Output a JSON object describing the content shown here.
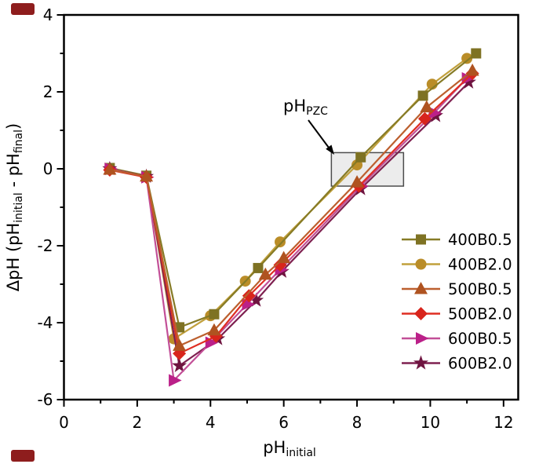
{
  "figure": {
    "background": "#ffffff",
    "corner_mark_color": "#8e1d1d"
  },
  "chart_data": {
    "type": "line",
    "title": "",
    "xlabel": {
      "base": "pH",
      "sub": "initial"
    },
    "ylabel": {
      "part1": "ΔpH (pH",
      "sub1": "initial",
      "part2": " - pH",
      "sub2": "final",
      "part3": ")"
    },
    "xlim": [
      0,
      12.4
    ],
    "ylim": [
      -6,
      4
    ],
    "x_major_ticks": [
      0,
      2,
      4,
      6,
      8,
      10,
      12
    ],
    "x_minor_ticks": [
      1,
      3,
      5,
      7,
      9,
      11
    ],
    "y_major_ticks": [
      4,
      2,
      0,
      -2,
      -4,
      -6
    ],
    "y_minor_ticks": [
      3,
      1,
      -1,
      -3,
      -5
    ],
    "grid": false,
    "legend_position": "lower right",
    "annotation": {
      "base": "pH",
      "sub": "PZC",
      "arrow_color": "#000000"
    },
    "pzc_box": {
      "x_from": 7.3,
      "x_to": 9.27,
      "y_from": -0.45,
      "y_to": 0.42,
      "fill": "#ececec",
      "border": "#4d4d4d"
    },
    "series": [
      {
        "name": "400B0.5",
        "marker": "square",
        "marker_color": "#7E7223",
        "line_color": "#867B26",
        "points": [
          [
            1.25,
            0.02
          ],
          [
            2.25,
            -0.18
          ],
          [
            3.15,
            -4.12
          ],
          [
            4.1,
            -3.78
          ],
          [
            5.3,
            -2.58
          ],
          [
            8.1,
            0.3
          ],
          [
            9.8,
            1.9
          ],
          [
            11.25,
            3.0
          ]
        ]
      },
      {
        "name": "400B2.0",
        "marker": "circle",
        "marker_color": "#BA8D28",
        "line_color": "#C1A03C",
        "points": [
          [
            1.25,
            0.0
          ],
          [
            2.25,
            -0.2
          ],
          [
            3.0,
            -4.42
          ],
          [
            4.0,
            -3.82
          ],
          [
            4.95,
            -2.92
          ],
          [
            5.9,
            -1.9
          ],
          [
            8.0,
            0.1
          ],
          [
            10.05,
            2.2
          ],
          [
            11.0,
            2.87
          ]
        ]
      },
      {
        "name": "500B0.5",
        "marker": "triangle-up",
        "marker_color": "#AF5320",
        "line_color": "#BC5F2E",
        "points": [
          [
            1.25,
            -0.02
          ],
          [
            2.25,
            -0.2
          ],
          [
            3.15,
            -4.6
          ],
          [
            4.1,
            -4.2
          ],
          [
            5.5,
            -2.75
          ],
          [
            6.0,
            -2.32
          ],
          [
            8.0,
            -0.35
          ],
          [
            9.9,
            1.6
          ],
          [
            11.15,
            2.55
          ]
        ]
      },
      {
        "name": "500B2.0",
        "marker": "diamond",
        "marker_color": "#D8251C",
        "line_color": "#DF2E22",
        "points": [
          [
            1.25,
            -0.03
          ],
          [
            2.25,
            -0.22
          ],
          [
            3.15,
            -4.8
          ],
          [
            4.15,
            -4.35
          ],
          [
            5.05,
            -3.3
          ],
          [
            5.9,
            -2.5
          ],
          [
            8.05,
            -0.45
          ],
          [
            9.85,
            1.3
          ],
          [
            11.15,
            2.48
          ]
        ]
      },
      {
        "name": "600B0.5",
        "marker": "triangle-right",
        "marker_color": "#BB2089",
        "line_color": "#C24F97",
        "points": [
          [
            1.25,
            0.0
          ],
          [
            2.25,
            -0.22
          ],
          [
            3.0,
            -5.5
          ],
          [
            4.0,
            -4.52
          ],
          [
            5.0,
            -3.52
          ],
          [
            5.9,
            -2.62
          ],
          [
            8.1,
            -0.45
          ],
          [
            10.1,
            1.45
          ],
          [
            11.0,
            2.35
          ]
        ]
      },
      {
        "name": "600B2.0",
        "marker": "star",
        "marker_color": "#6F1440",
        "line_color": "#7E2050",
        "points": [
          [
            1.25,
            0.0
          ],
          [
            2.25,
            -0.2
          ],
          [
            3.15,
            -5.12
          ],
          [
            4.2,
            -4.42
          ],
          [
            5.25,
            -3.42
          ],
          [
            5.95,
            -2.67
          ],
          [
            8.1,
            -0.52
          ],
          [
            10.15,
            1.38
          ],
          [
            11.05,
            2.25
          ]
        ]
      }
    ]
  }
}
